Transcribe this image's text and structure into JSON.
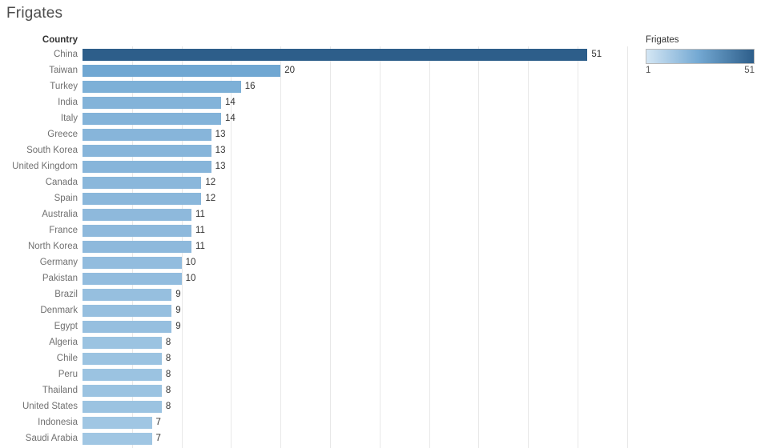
{
  "title": "Frigates",
  "column_header": "Country",
  "legend": {
    "title": "Frigates",
    "min_label": "1",
    "max_label": "51",
    "gradient_start": "#d4e6f4",
    "gradient_mid": "#74a9d3",
    "gradient_end": "#2d5e8a"
  },
  "colors": {
    "background": "#ffffff",
    "gridline": "#e8e8e8",
    "title": "#4d4d4d",
    "column_header": "#333333",
    "country_label": "#707070",
    "value_label": "#333333",
    "bar_darkest": "#2d5e8a",
    "bar_lightest": "#a0c6e3"
  },
  "value_colors": {
    "7": "#a0c6e3",
    "8": "#9bc3e1",
    "9": "#96bfdf",
    "10": "#92bcde",
    "11": "#8eb9dc",
    "12": "#8ab7db",
    "13": "#87b5da",
    "14": "#83b3d9",
    "16": "#7db0d7",
    "20": "#70a7d2",
    "51": "#2d5e8a"
  },
  "chart_data": {
    "type": "bar",
    "orientation": "horizontal",
    "title": "Frigates",
    "xlabel": "Frigates",
    "ylabel": "Country",
    "categories": [
      "China",
      "Taiwan",
      "Turkey",
      "India",
      "Italy",
      "Greece",
      "South Korea",
      "United Kingdom",
      "Canada",
      "Spain",
      "Australia",
      "France",
      "North Korea",
      "Germany",
      "Pakistan",
      "Brazil",
      "Denmark",
      "Egypt",
      "Algeria",
      "Chile",
      "Peru",
      "Thailand",
      "United States",
      "Indonesia",
      "Saudi Arabia"
    ],
    "values": [
      51,
      20,
      16,
      14,
      14,
      13,
      13,
      13,
      12,
      12,
      11,
      11,
      11,
      10,
      10,
      9,
      9,
      9,
      8,
      8,
      8,
      8,
      8,
      7,
      7
    ],
    "xlim": [
      0,
      55
    ],
    "gridlines_every": 5,
    "grid": "vertical",
    "data_labels": true,
    "legend_position": "top-right",
    "color_scale": {
      "min": 1,
      "max": 51,
      "min_color": "#d4e6f4",
      "max_color": "#2d5e8a"
    }
  }
}
